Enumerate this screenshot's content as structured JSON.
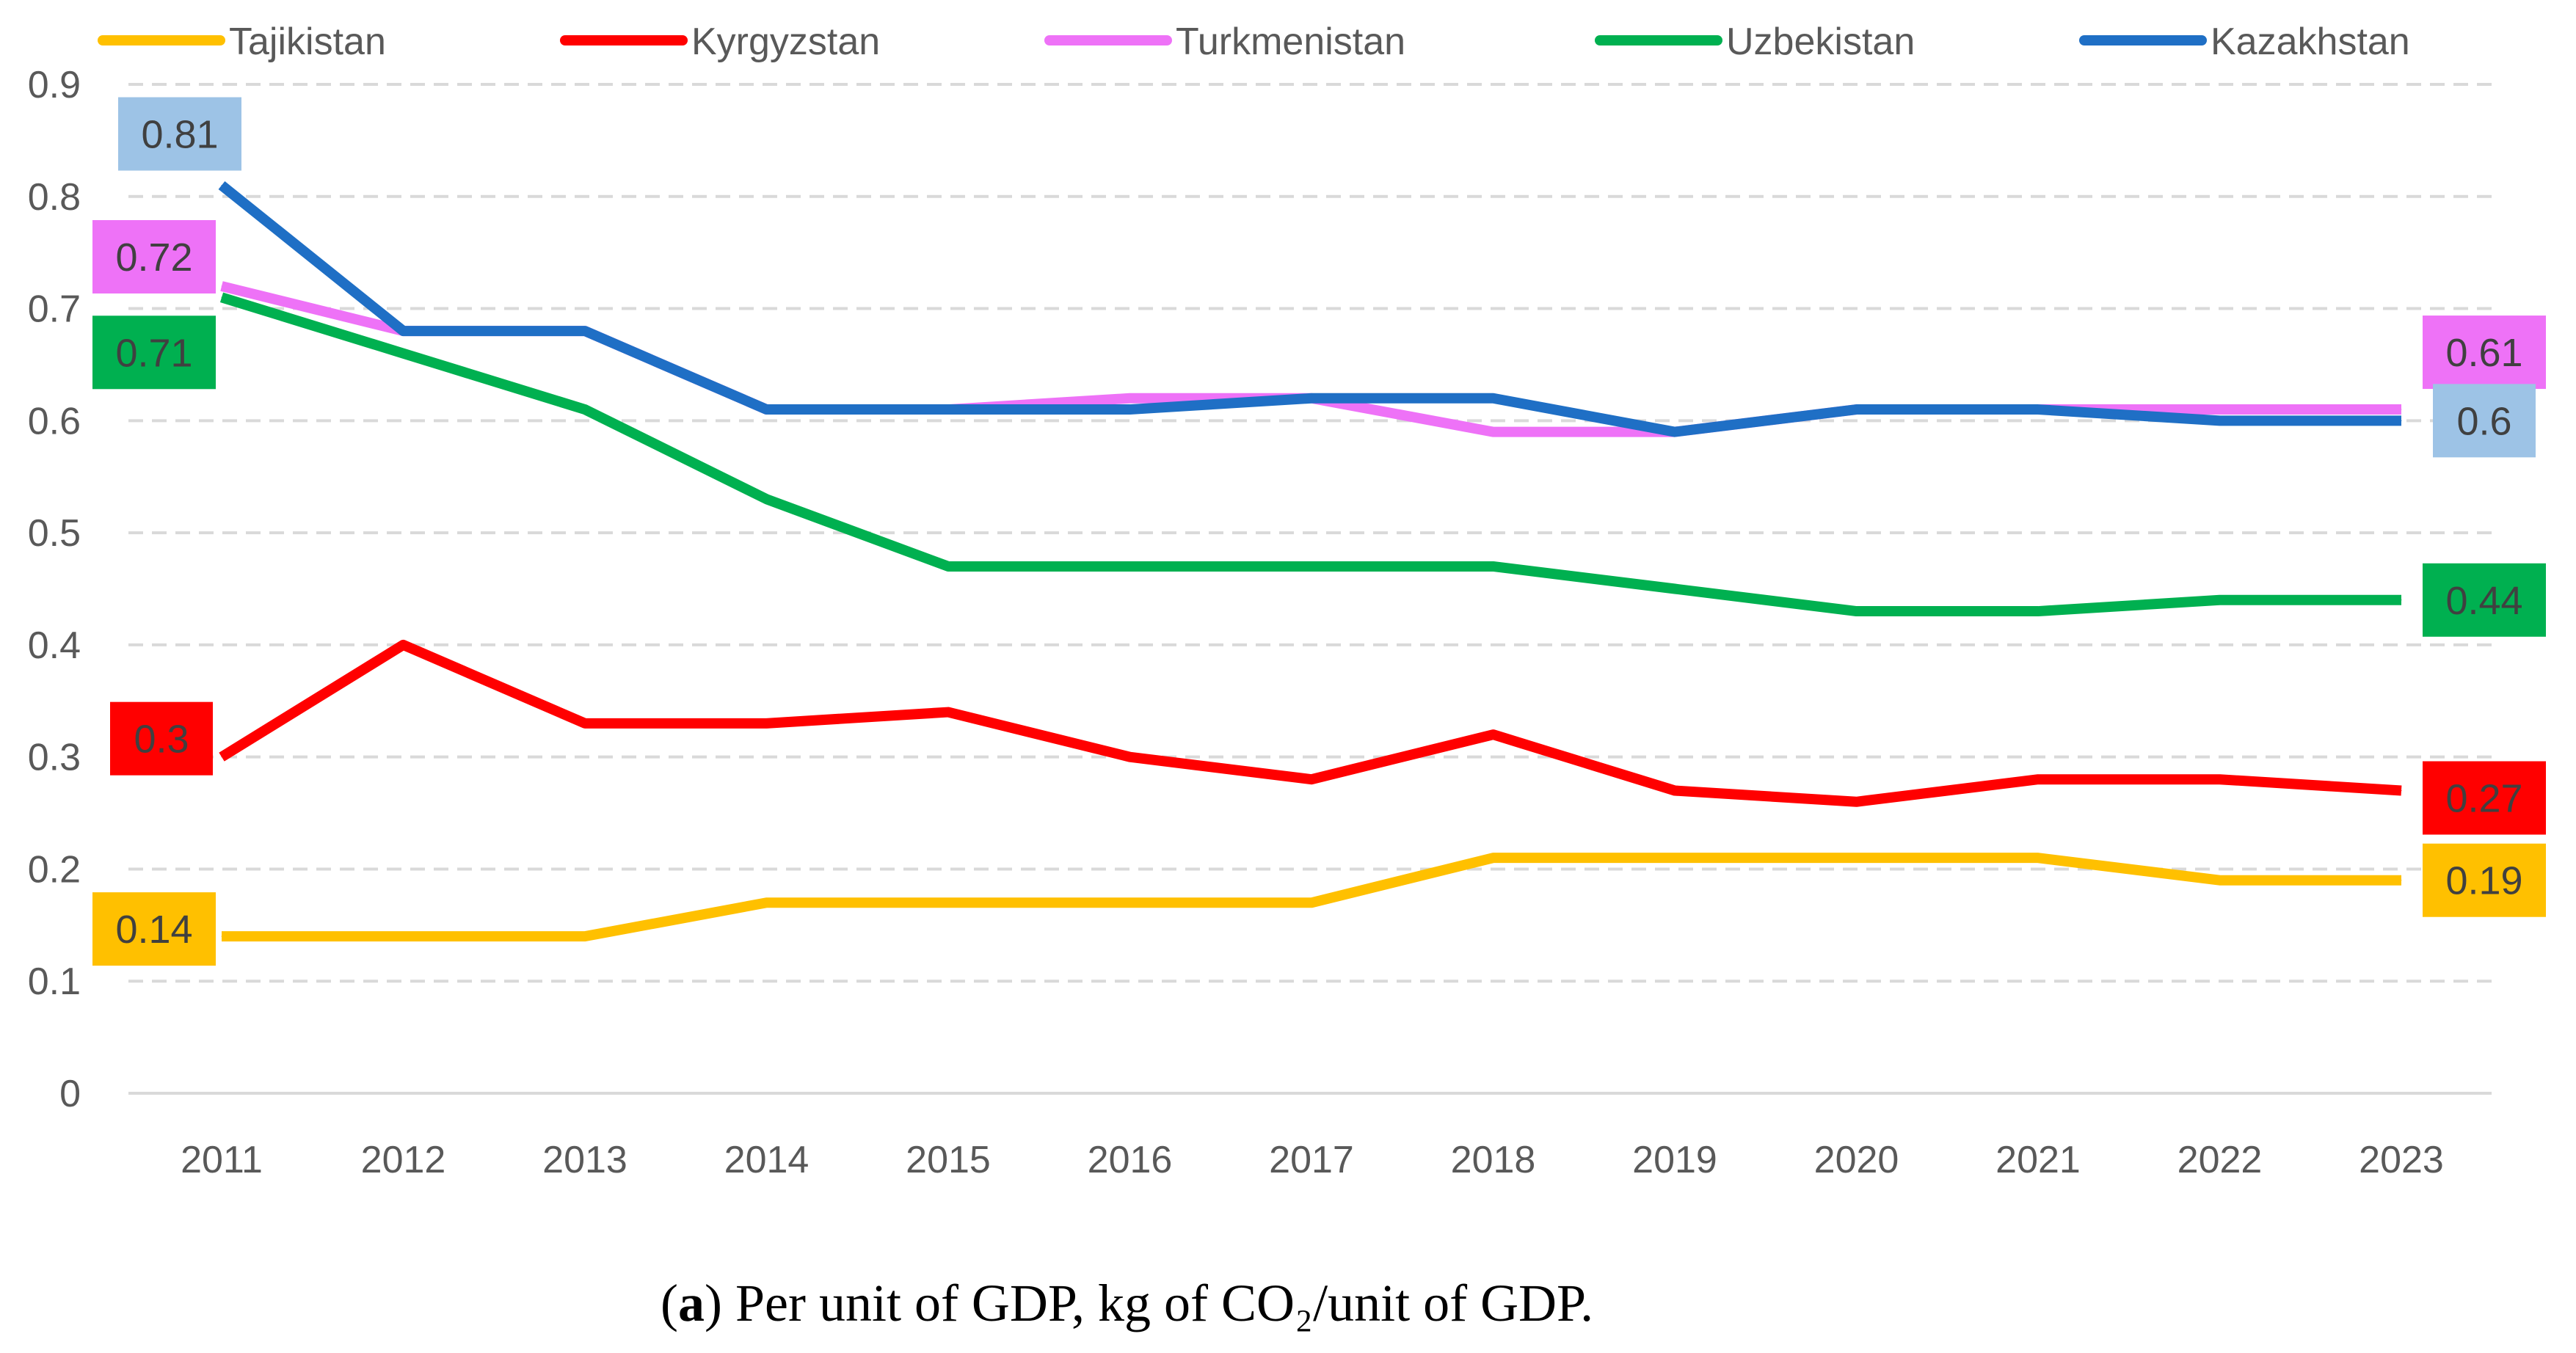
{
  "chart_data": {
    "type": "line",
    "categories": [
      "2011",
      "2012",
      "2013",
      "2014",
      "2015",
      "2016",
      "2017",
      "2018",
      "2019",
      "2020",
      "2021",
      "2022",
      "2023"
    ],
    "ylim": [
      0,
      0.9
    ],
    "yticks": [
      "0",
      "0.1",
      "0.2",
      "0.3",
      "0.4",
      "0.5",
      "0.6",
      "0.7",
      "0.8",
      "0.9"
    ],
    "grid": true,
    "legend_position": "top",
    "series": [
      {
        "name": "Tajikistan",
        "color": "#FFC000",
        "values": [
          0.14,
          0.14,
          0.14,
          0.17,
          0.17,
          0.17,
          0.17,
          0.21,
          0.21,
          0.21,
          0.21,
          0.19,
          0.19
        ],
        "first_label": "0.14",
        "last_label": "0.19",
        "first_box": "#FFC000",
        "last_box": "#FFC000"
      },
      {
        "name": "Kyrgyzstan",
        "color": "#FF0000",
        "values": [
          0.3,
          0.4,
          0.33,
          0.33,
          0.34,
          0.3,
          0.28,
          0.32,
          0.27,
          0.26,
          0.28,
          0.28,
          0.27
        ],
        "first_label": "0.3",
        "last_label": "0.27",
        "first_box": "#FF0000",
        "last_box": "#FF0000"
      },
      {
        "name": "Turkmenistan",
        "color": "#EE72F7",
        "values": [
          0.72,
          0.68,
          0.68,
          0.61,
          0.61,
          0.62,
          0.62,
          0.59,
          0.59,
          0.61,
          0.61,
          0.61,
          0.61
        ],
        "first_label": "0.72",
        "last_label": "0.61",
        "first_box": "#EE72F7",
        "last_box": "#EE72F7"
      },
      {
        "name": "Uzbekistan",
        "color": "#00B050",
        "values": [
          0.71,
          0.66,
          0.61,
          0.53,
          0.47,
          0.47,
          0.47,
          0.47,
          0.45,
          0.43,
          0.43,
          0.44,
          0.44
        ],
        "first_label": "0.71",
        "last_label": "0.44",
        "first_box": "#00B050",
        "last_box": "#00B050"
      },
      {
        "name": "Kazakhstan",
        "color": "#1F6FC5",
        "values": [
          0.81,
          0.68,
          0.68,
          0.61,
          0.61,
          0.61,
          0.62,
          0.62,
          0.59,
          0.61,
          0.61,
          0.6,
          0.6
        ],
        "first_label": "0.81",
        "last_label": "0.6",
        "first_box": "#9DC3E6",
        "last_box": "#9DC3E6"
      }
    ]
  },
  "caption": {
    "prefix": "(",
    "bold": "a",
    "text": ") Per unit of GDP, kg of CO₂/unit of GDP."
  }
}
